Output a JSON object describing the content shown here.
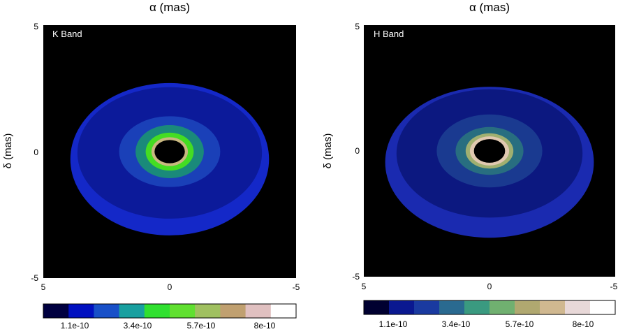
{
  "chart_data": [
    {
      "type": "heatmap",
      "id": "k",
      "band_label": "K Band",
      "xlabel": "α (mas)",
      "ylabel": "δ (mas)",
      "xlim": [
        5,
        -5
      ],
      "ylim": [
        -5,
        5
      ],
      "x_ticks": [
        "5",
        "0",
        "-5"
      ],
      "y_ticks": [
        "5",
        "0",
        "-5"
      ],
      "background": "#000000",
      "rings": [
        {
          "rx_in": 0,
          "ry_in": 0,
          "rx_out": 3.93,
          "ry_out": 3.01,
          "cy": -0.3,
          "color": "#1428c8"
        },
        {
          "rx_in": 0,
          "ry_in": 0,
          "rx_out": 3.65,
          "ry_out": 2.6,
          "cy": -0.05,
          "color": "#0c1a9a"
        },
        {
          "rx_in": 0,
          "ry_in": 0,
          "rx_out": 2.0,
          "ry_out": 1.4,
          "cy": 0,
          "color": "#1a40b8"
        },
        {
          "rx_in": 0,
          "ry_in": 0,
          "rx_out": 1.35,
          "ry_out": 1.05,
          "cy": 0,
          "color": "#1a8a7a"
        },
        {
          "rx_in": 0,
          "ry_in": 0,
          "rx_out": 0.95,
          "ry_out": 0.75,
          "cy": 0,
          "color": "#44dd22"
        },
        {
          "rx_in": 0,
          "ry_in": 0,
          "rx_out": 0.72,
          "ry_out": 0.57,
          "cy": 0,
          "color": "#c8b880"
        },
        {
          "rx_in": 0,
          "ry_in": 0,
          "rx_out": 0.6,
          "ry_out": 0.46,
          "cy": 0,
          "color": "#000000"
        }
      ],
      "colorbar": {
        "colors": [
          "#000040",
          "#0010c0",
          "#1850c8",
          "#18a0a0",
          "#30e030",
          "#60e030",
          "#a0c060",
          "#c0a070",
          "#e0c0c0",
          "#ffffff"
        ],
        "tick_labels": [
          "1.1e-10",
          "3.4e-10",
          "5.7e-10",
          "8e-10"
        ]
      }
    },
    {
      "type": "heatmap",
      "id": "h",
      "band_label": "H Band",
      "xlabel": "α (mas)",
      "ylabel": "δ (mas)",
      "xlim": [
        5,
        -5
      ],
      "ylim": [
        -5,
        5
      ],
      "x_ticks": [
        "5",
        "0",
        "-5"
      ],
      "y_ticks": [
        "5",
        "0",
        "-5"
      ],
      "background": "#000000",
      "rings": [
        {
          "rx_in": 0,
          "ry_in": 0,
          "rx_out": 4.15,
          "ry_out": 3.0,
          "cy": -0.45,
          "color": "#1a2ab0"
        },
        {
          "rx_in": 0,
          "ry_in": 0,
          "rx_out": 3.7,
          "ry_out": 2.55,
          "cy": -0.1,
          "color": "#0c1880"
        },
        {
          "rx_in": 0,
          "ry_in": 0,
          "rx_out": 2.1,
          "ry_out": 1.45,
          "cy": 0,
          "color": "#1a3a90"
        },
        {
          "rx_in": 0,
          "ry_in": 0,
          "rx_out": 1.35,
          "ry_out": 0.95,
          "cy": 0,
          "color": "#286e80"
        },
        {
          "rx_in": 0,
          "ry_in": 0,
          "rx_out": 0.95,
          "ry_out": 0.7,
          "cy": 0,
          "color": "#a0b070"
        },
        {
          "rx_in": 0,
          "ry_in": 0,
          "rx_out": 0.78,
          "ry_out": 0.58,
          "cy": 0,
          "color": "#e0c8b0"
        },
        {
          "rx_in": 0,
          "ry_in": 0,
          "rx_out": 0.62,
          "ry_out": 0.47,
          "cy": 0,
          "color": "#000000"
        }
      ],
      "colorbar": {
        "colors": [
          "#000030",
          "#0a1890",
          "#1a3aa0",
          "#2a6a90",
          "#3a9a80",
          "#70b070",
          "#b0a870",
          "#d0b890",
          "#e8d8d8",
          "#ffffff"
        ],
        "tick_labels": [
          "1.1e-10",
          "3.4e-10",
          "5.7e-10",
          "8e-10"
        ]
      }
    }
  ]
}
